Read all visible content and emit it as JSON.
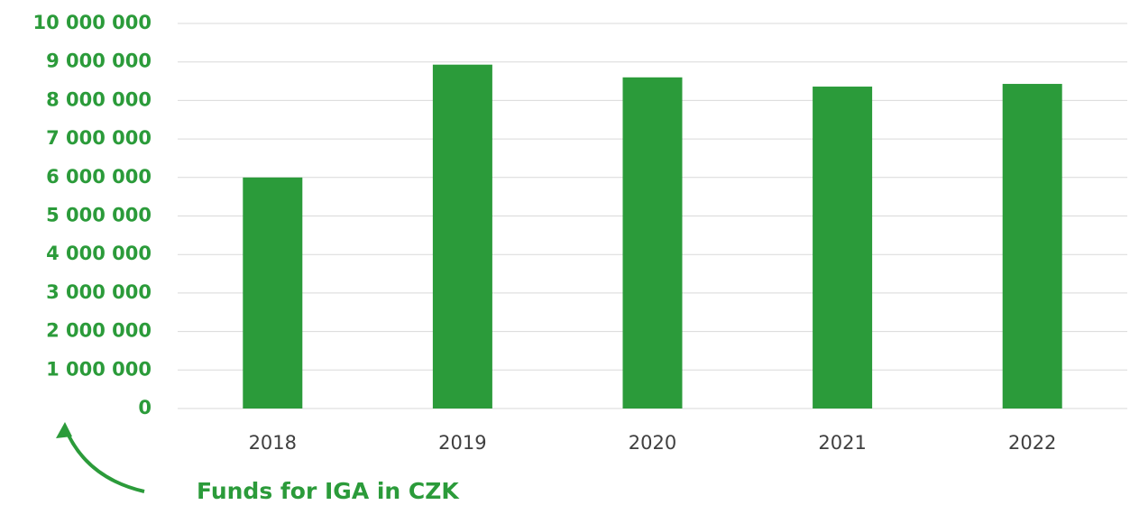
{
  "chart_data": {
    "type": "bar",
    "categories": [
      "2018",
      "2019",
      "2020",
      "2021",
      "2022"
    ],
    "values": [
      6000000,
      8930000,
      8600000,
      8360000,
      8430000
    ],
    "color": "#2b9b3a",
    "ylim": [
      0,
      10000000
    ],
    "yticks": [
      0,
      {
        "value": 1000000,
        "label": "1 000 000"
      },
      {
        "value": 2000000,
        "label": "2 000 000"
      },
      {
        "value": 3000000,
        "label": "3 000 000"
      },
      {
        "value": 4000000,
        "label": "4 000 000"
      },
      {
        "value": 5000000,
        "label": "5 000 000"
      },
      {
        "value": 6000000,
        "label": "6 000 000"
      },
      {
        "value": 7000000,
        "label": "7 000 000"
      },
      {
        "value": 8000000,
        "label": "8 000 000"
      },
      {
        "value": 9000000,
        "label": "9 000 000"
      },
      {
        "value": 10000000,
        "label": "10 000 000"
      }
    ],
    "grid": true,
    "annotation": "Funds for IGA in CZK"
  }
}
